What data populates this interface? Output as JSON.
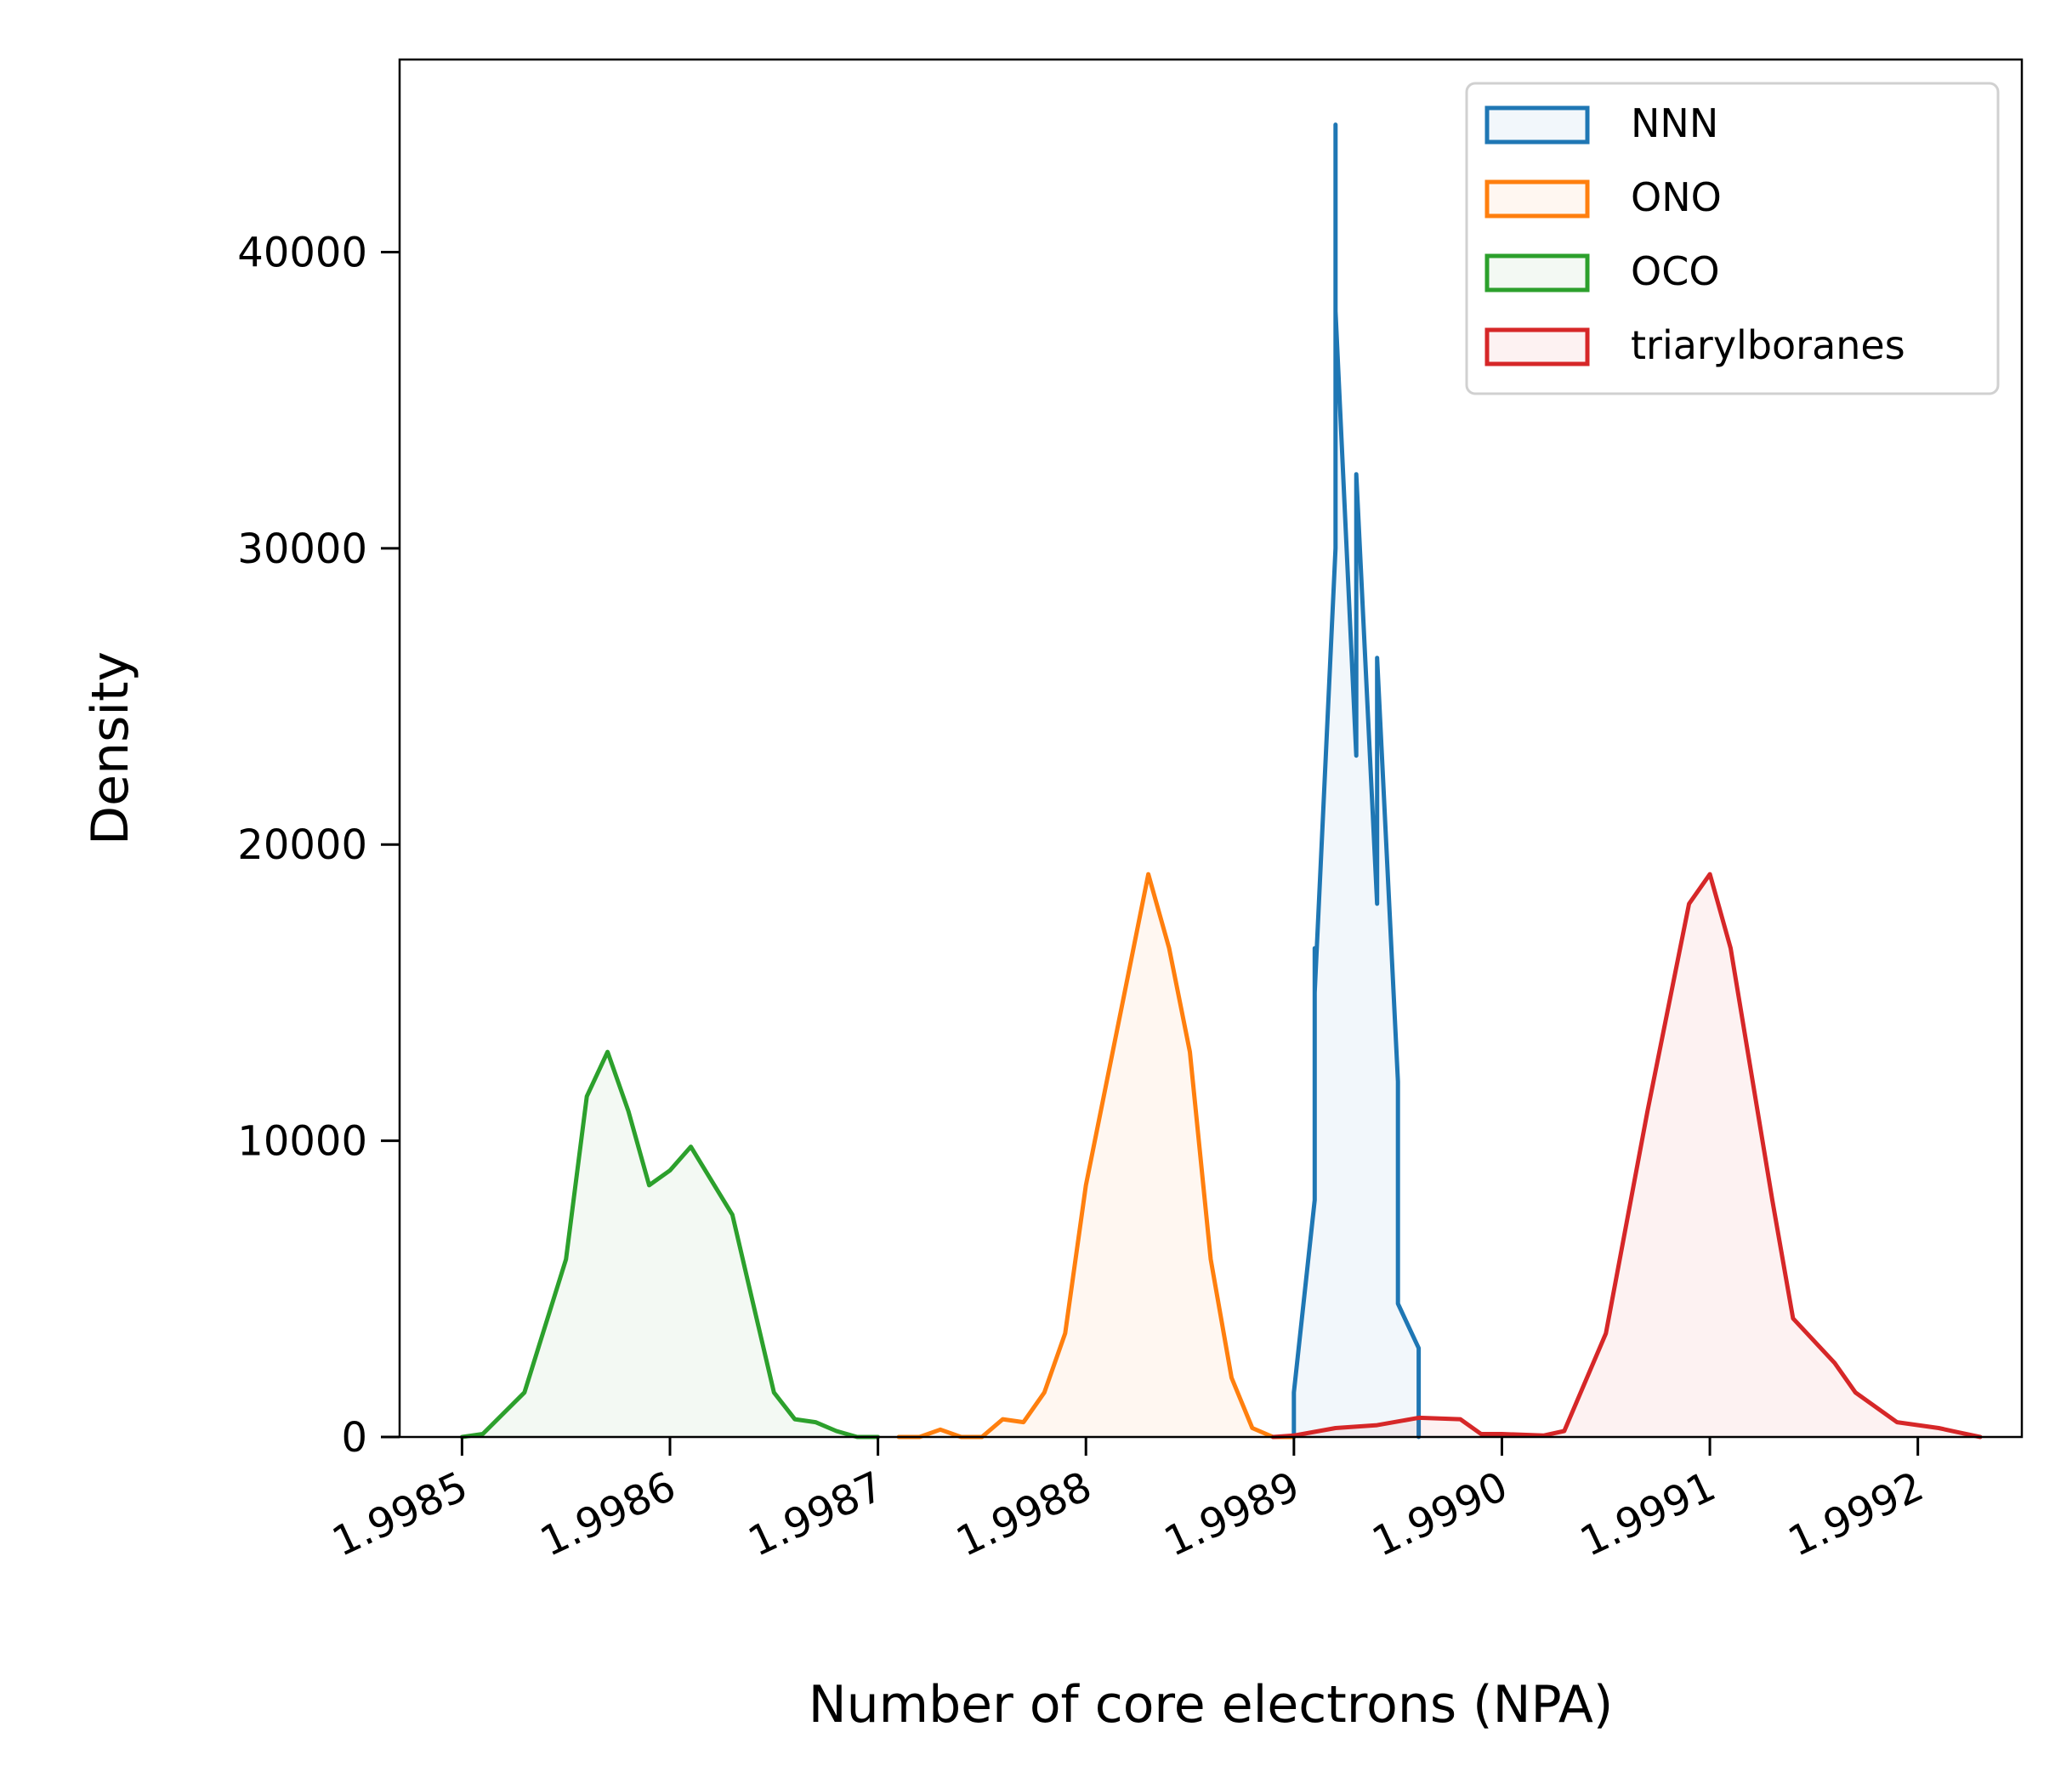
{
  "chart_data": {
    "type": "area",
    "xlabel": "Number of core electrons (NPA)",
    "ylabel": "Density",
    "xlim": [
      1.99847,
      1.99925
    ],
    "ylim": [
      0,
      46500
    ],
    "x_ticks": [
      1.9985,
      1.9986,
      1.9987,
      1.9988,
      1.9989,
      1.999,
      1.9991,
      1.9992
    ],
    "x_tick_labels": [
      "1.9985",
      "1.9986",
      "1.9987",
      "1.9988",
      "1.9989",
      "1.9990",
      "1.9991",
      "1.9992"
    ],
    "y_ticks": [
      0,
      10000,
      20000,
      30000,
      40000
    ],
    "y_tick_labels": [
      "0",
      "10000",
      "20000",
      "30000",
      "40000"
    ],
    "legend_position": "top-right",
    "series": [
      {
        "name": "NNN",
        "color": "#1f77b4",
        "points": [
          [
            1.9989,
            0
          ],
          [
            1.9989,
            1500
          ],
          [
            1.99891,
            8000
          ],
          [
            1.99891,
            16500
          ],
          [
            1.99891,
            15000
          ],
          [
            1.99892,
            30000
          ],
          [
            1.99892,
            44300
          ],
          [
            1.99892,
            38000
          ],
          [
            1.99893,
            23000
          ],
          [
            1.99893,
            32500
          ],
          [
            1.99894,
            18000
          ],
          [
            1.99894,
            26300
          ],
          [
            1.99895,
            12000
          ],
          [
            1.99895,
            4500
          ],
          [
            1.99896,
            3000
          ],
          [
            1.99896,
            0
          ]
        ]
      },
      {
        "name": "ONO",
        "color": "#ff7f0e",
        "points": [
          [
            1.99871,
            0
          ],
          [
            1.99872,
            0
          ],
          [
            1.99873,
            250
          ],
          [
            1.99874,
            0
          ],
          [
            1.99875,
            0
          ],
          [
            1.99876,
            600
          ],
          [
            1.99877,
            500
          ],
          [
            1.99878,
            1500
          ],
          [
            1.99879,
            3500
          ],
          [
            1.9988,
            8500
          ],
          [
            1.99881,
            12000
          ],
          [
            1.99882,
            15500
          ],
          [
            1.99883,
            19000
          ],
          [
            1.99884,
            16500
          ],
          [
            1.99885,
            13000
          ],
          [
            1.99886,
            6000
          ],
          [
            1.99887,
            2000
          ],
          [
            1.99888,
            300
          ],
          [
            1.99889,
            0
          ],
          [
            1.9989,
            0
          ]
        ]
      },
      {
        "name": "OCO",
        "color": "#2ca02c",
        "points": [
          [
            1.9985,
            0
          ],
          [
            1.99851,
            100
          ],
          [
            1.99853,
            1500
          ],
          [
            1.99855,
            6000
          ],
          [
            1.99856,
            11500
          ],
          [
            1.99857,
            13000
          ],
          [
            1.99858,
            11000
          ],
          [
            1.99859,
            8500
          ],
          [
            1.9986,
            9000
          ],
          [
            1.99861,
            9800
          ],
          [
            1.99863,
            7500
          ],
          [
            1.99864,
            4500
          ],
          [
            1.99865,
            1500
          ],
          [
            1.99866,
            600
          ],
          [
            1.99867,
            500
          ],
          [
            1.99868,
            200
          ],
          [
            1.99869,
            0
          ],
          [
            1.9987,
            0
          ]
        ]
      },
      {
        "name": "triarylboranes",
        "color": "#d62728",
        "points": [
          [
            1.99889,
            0
          ],
          [
            1.9989,
            50
          ],
          [
            1.99892,
            300
          ],
          [
            1.99894,
            400
          ],
          [
            1.99896,
            650
          ],
          [
            1.99898,
            600
          ],
          [
            1.99899,
            100
          ],
          [
            1.999,
            100
          ],
          [
            1.99902,
            50
          ],
          [
            1.99903,
            200
          ],
          [
            1.99905,
            3500
          ],
          [
            1.99907,
            11000
          ],
          [
            1.99909,
            18000
          ],
          [
            1.9991,
            19000
          ],
          [
            1.99911,
            16500
          ],
          [
            1.99913,
            8000
          ],
          [
            1.99914,
            4000
          ],
          [
            1.99916,
            2500
          ],
          [
            1.99917,
            1500
          ],
          [
            1.99919,
            500
          ],
          [
            1.99921,
            300
          ],
          [
            1.99922,
            150
          ],
          [
            1.99923,
            0
          ]
        ]
      }
    ]
  }
}
